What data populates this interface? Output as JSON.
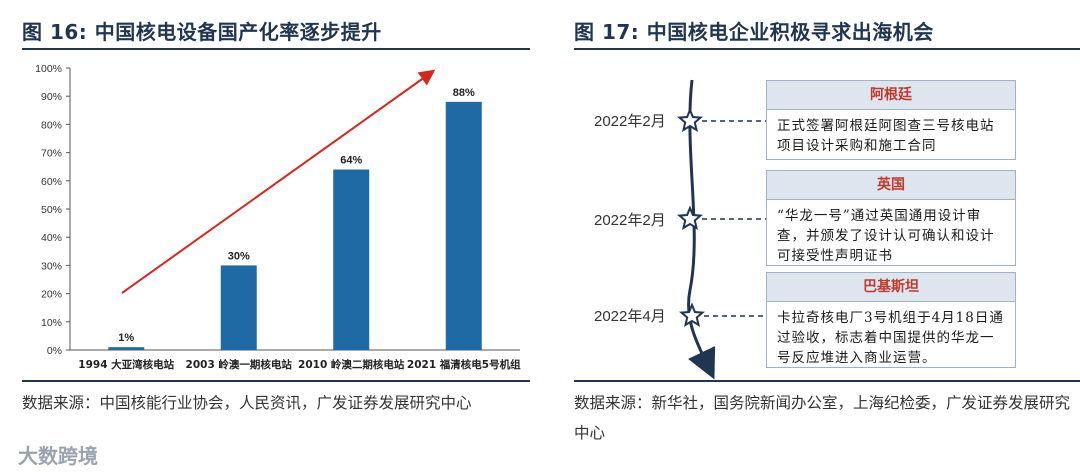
{
  "left": {
    "title": "图 16:  中国核电设备国产化率逐步提升",
    "source": "数据来源：中国核能行业协会，人民资讯，广发证券发展研究中心"
  },
  "right": {
    "title": "图 17:  中国核电企业积极寻求出海机会",
    "source": "数据来源：新华社，国务院新闻办公室，上海纪检委，广发证券发展研究中心",
    "events": [
      {
        "date": "2022年2月",
        "country": "阿根廷",
        "text": "正式签署阿根廷阿图查三号核电站项目设计采购和施工合同"
      },
      {
        "date": "2022年2月",
        "country": "英国",
        "text": "“华龙一号”通过英国通用设计审查，并颁发了设计认可确认和设计可接受性声明证书"
      },
      {
        "date": "2022年4月",
        "country": "巴基斯坦",
        "text": "卡拉奇核电厂3号机组于4月18日通过验收，标志着中国提供的华龙一号反应堆进入商业运营。"
      }
    ]
  },
  "watermark": "大数跨境",
  "colors": {
    "bar": "#1f6aa5",
    "arrow": "#d7261e",
    "title": "#1f3552",
    "timeline": "#1f3552"
  },
  "chart_data": {
    "type": "bar",
    "title": "中国核电设备国产化率逐步提升",
    "categories": [
      "1994 大亚湾核电站",
      "2003 岭澳一期核电站",
      "2010 岭澳二期核电站",
      "2021 福清核电5号机组"
    ],
    "values": [
      1,
      30,
      64,
      88
    ],
    "data_labels": [
      "1%",
      "30%",
      "64%",
      "88%"
    ],
    "ylim": [
      0,
      100
    ],
    "yticks": [
      "0%",
      "10%",
      "20%",
      "30%",
      "40%",
      "50%",
      "60%",
      "70%",
      "80%",
      "90%",
      "100%"
    ],
    "trend_arrow": true,
    "grid": false
  }
}
